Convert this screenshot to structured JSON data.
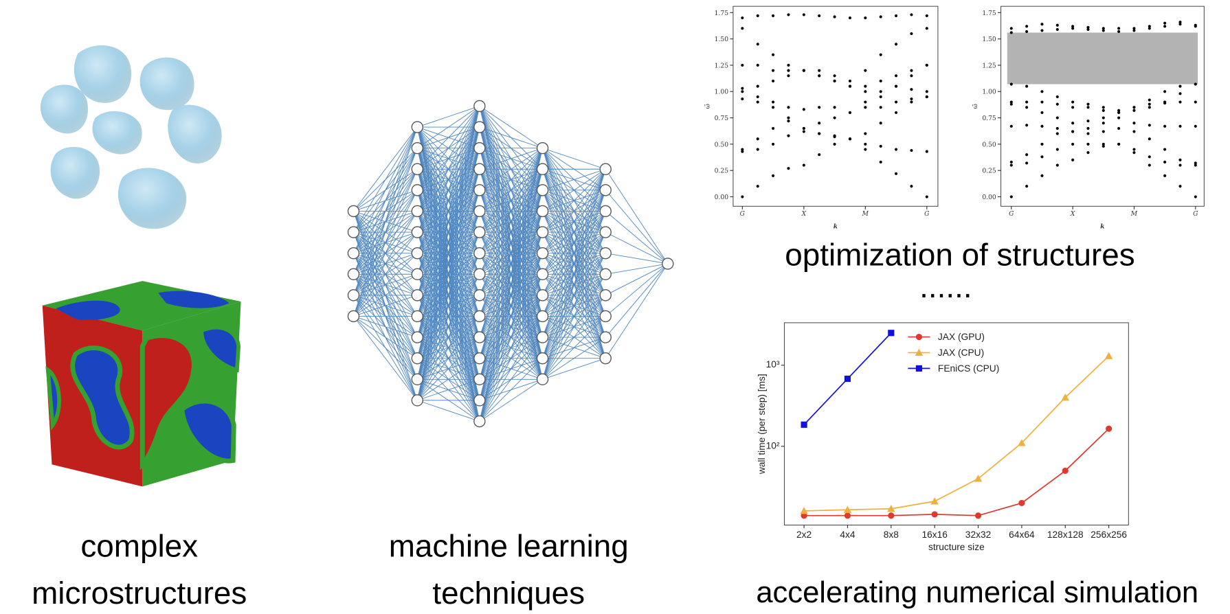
{
  "captions": {
    "microstructures": [
      "complex",
      "microstructures"
    ],
    "machine_learning": [
      "machine learning",
      "techniques"
    ],
    "optimization": "optimization of structures",
    "ellipsis": "......",
    "simulation": "accelerating numerical simulation"
  },
  "chart_data": [
    {
      "type": "scatter",
      "color": "#000000",
      "x_label": "k",
      "y_label": "ω̄",
      "x": [
        0,
        0.25,
        0.5,
        0.75,
        1,
        1.25,
        1.5,
        1.75,
        2,
        2.25,
        2.5,
        2.75,
        3
      ],
      "xlim": [
        -0.15,
        3.18
      ],
      "ylim": [
        -0.09,
        1.81
      ],
      "xticks": [
        {
          "value": 0,
          "label": "G"
        },
        {
          "value": 1,
          "label": "X"
        },
        {
          "value": 2,
          "label": "M"
        },
        {
          "value": 3,
          "label": "G"
        }
      ],
      "yticks": [
        {
          "value": 0,
          "label": "0.00"
        },
        {
          "value": 0.25,
          "label": "0.25"
        },
        {
          "value": 0.5,
          "label": "0.50"
        },
        {
          "value": 0.75,
          "label": "0.75"
        },
        {
          "value": 1,
          "label": "1.00"
        },
        {
          "value": 1.25,
          "label": "1.25"
        },
        {
          "value": 1.5,
          "label": "1.50"
        },
        {
          "value": 1.75,
          "label": "1.75"
        }
      ],
      "series": [
        {
          "values": [
            0,
            0.1,
            0.2,
            0.27,
            0.3,
            0.4,
            0.5,
            0.55,
            0.45,
            0.33,
            0.22,
            0.1,
            0
          ]
        },
        {
          "values": [
            0.43,
            0.45,
            0.5,
            0.58,
            0.62,
            0.6,
            0.58,
            0.55,
            0.5,
            0.48,
            0.45,
            0.44,
            0.43
          ]
        },
        {
          "values": [
            0.45,
            0.55,
            0.65,
            0.72,
            0.65,
            0.6,
            0.57,
            0.55,
            0.6,
            0.7,
            0.8,
            0.9,
            0.95
          ]
        },
        {
          "values": [
            0.93,
            0.9,
            0.85,
            0.75,
            0.65,
            0.7,
            0.75,
            0.8,
            0.85,
            0.85,
            0.9,
            0.93,
            0.95
          ]
        },
        {
          "values": [
            1.0,
            0.95,
            0.9,
            0.85,
            0.83,
            0.85,
            0.85,
            0.8,
            0.9,
            1.0,
            1.05,
            1.02,
            1.0
          ]
        },
        {
          "values": [
            1.03,
            1.05,
            1.1,
            1.15,
            1.2,
            1.15,
            1.1,
            1.05,
            1.05,
            1.1,
            1.15,
            1.2,
            1.25
          ]
        },
        {
          "values": [
            1.25,
            1.25,
            1.2,
            1.2,
            1.2,
            1.15,
            1.1,
            1.05,
            1.0,
            0.95,
            1.05,
            1.15,
            1.25
          ]
        },
        {
          "values": [
            1.6,
            1.45,
            1.35,
            1.25,
            1.2,
            1.2,
            1.15,
            1.1,
            1.2,
            1.35,
            1.45,
            1.55,
            1.6
          ]
        },
        {
          "values": [
            1.7,
            1.72,
            1.72,
            1.73,
            1.73,
            1.72,
            1.71,
            1.7,
            1.7,
            1.71,
            1.72,
            1.73,
            1.72
          ]
        }
      ]
    },
    {
      "type": "scatter",
      "color": "#000000",
      "x_label": "k",
      "y_label": "ω̄",
      "gap": [
        1.07,
        1.56
      ],
      "gap_color": "#b3b3b3",
      "x": [
        0,
        0.25,
        0.5,
        0.75,
        1,
        1.25,
        1.5,
        1.75,
        2,
        2.25,
        2.5,
        2.75,
        3
      ],
      "xlim": [
        -0.17,
        3.14
      ],
      "ylim": [
        -0.09,
        1.81
      ],
      "xticks": [
        {
          "value": 0,
          "label": "G"
        },
        {
          "value": 1,
          "label": "X"
        },
        {
          "value": 2,
          "label": "M"
        },
        {
          "value": 3,
          "label": "G"
        }
      ],
      "yticks": [
        {
          "value": 0,
          "label": "0.00"
        },
        {
          "value": 0.25,
          "label": "0.25"
        },
        {
          "value": 0.5,
          "label": "0.50"
        },
        {
          "value": 0.75,
          "label": "0.75"
        },
        {
          "value": 1,
          "label": "1.00"
        },
        {
          "value": 1.25,
          "label": "1.25"
        },
        {
          "value": 1.5,
          "label": "1.50"
        },
        {
          "value": 1.75,
          "label": "1.75"
        }
      ],
      "series": [
        {
          "values": [
            0,
            0.1,
            0.2,
            0.3,
            0.35,
            0.42,
            0.48,
            0.5,
            0.42,
            0.3,
            0.2,
            0.1,
            0
          ]
        },
        {
          "values": [
            0.3,
            0.32,
            0.38,
            0.45,
            0.5,
            0.5,
            0.5,
            0.5,
            0.45,
            0.38,
            0.33,
            0.3,
            0.3
          ]
        },
        {
          "values": [
            0.33,
            0.4,
            0.5,
            0.6,
            0.62,
            0.6,
            0.62,
            0.65,
            0.62,
            0.55,
            0.45,
            0.35,
            0.32
          ]
        },
        {
          "values": [
            0.67,
            0.68,
            0.67,
            0.65,
            0.62,
            0.65,
            0.7,
            0.75,
            0.7,
            0.68,
            0.67,
            0.67,
            0.67
          ]
        },
        {
          "values": [
            0.88,
            0.85,
            0.8,
            0.75,
            0.7,
            0.72,
            0.75,
            0.8,
            0.85,
            0.88,
            0.89,
            0.9,
            0.9
          ]
        },
        {
          "values": [
            0.9,
            0.9,
            0.9,
            0.88,
            0.85,
            0.85,
            0.82,
            0.8,
            0.85,
            0.92,
            1.0,
            1.05,
            1.07
          ]
        },
        {
          "values": [
            1.07,
            1.05,
            1.0,
            0.95,
            0.9,
            0.88,
            0.85,
            0.82,
            0.82,
            0.85,
            0.9,
            0.98,
            1.07
          ]
        },
        {
          "values": [
            1.56,
            1.57,
            1.58,
            1.59,
            1.6,
            1.59,
            1.58,
            1.57,
            1.58,
            1.6,
            1.62,
            1.64,
            1.63
          ]
        },
        {
          "values": [
            1.6,
            1.62,
            1.64,
            1.63,
            1.62,
            1.61,
            1.6,
            1.6,
            1.6,
            1.62,
            1.65,
            1.66,
            1.62
          ]
        }
      ]
    },
    {
      "type": "line",
      "log_y": true,
      "x_label": "structure size",
      "y_label": "wall time (per step) [ms]",
      "legend": "upper left",
      "categories": [
        "2x2",
        "4x4",
        "8x8",
        "16x16",
        "32x32",
        "64x64",
        "128x128",
        "256x256"
      ],
      "ylim": [
        10.7,
        3340
      ],
      "yticks": [
        {
          "value": 100,
          "label": "10²"
        },
        {
          "value": 1000,
          "label": "10³"
        }
      ],
      "series": [
        {
          "name": "JAX (GPU)",
          "color": "#e0382e",
          "marker": "circle",
          "values": [
            14,
            14,
            14,
            14.5,
            14,
            20,
            50,
            165
          ]
        },
        {
          "name": "JAX (CPU)",
          "color": "#f0b040",
          "marker": "triangle",
          "values": [
            16,
            16.5,
            17,
            21,
            40,
            110,
            400,
            1300
          ]
        },
        {
          "name": "FEniCS (CPU)",
          "color": "#1010e0",
          "marker": "square",
          "values": [
            185,
            680,
            2500,
            null,
            null,
            null,
            null,
            null
          ]
        }
      ]
    }
  ]
}
